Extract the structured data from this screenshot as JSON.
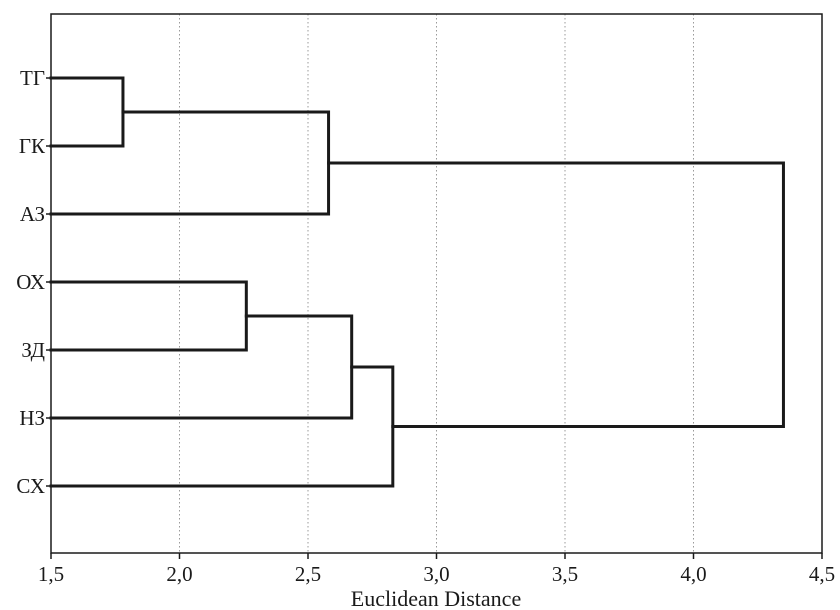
{
  "chart_data": {
    "type": "dendrogram",
    "title": "",
    "xlabel": "Euclidean Distance",
    "ylabel": "",
    "xlim": [
      1.5,
      4.5
    ],
    "xticks": [
      1.5,
      2.0,
      2.5,
      3.0,
      3.5,
      4.0,
      4.5
    ],
    "xtick_labels": [
      "1,5",
      "2,0",
      "2,5",
      "3,0",
      "3,5",
      "4,0",
      "4,5"
    ],
    "grid": "vertical",
    "leaves": [
      "ТГ",
      "ГК",
      "АЗ",
      "ОХ",
      "ЗД",
      "НЗ",
      "СХ"
    ],
    "merges": [
      {
        "id": "c1",
        "children": [
          "ТГ",
          "ГК"
        ],
        "distance": 1.78
      },
      {
        "id": "c2",
        "children": [
          "c1",
          "АЗ"
        ],
        "distance": 2.58
      },
      {
        "id": "c3",
        "children": [
          "ОХ",
          "ЗД"
        ],
        "distance": 2.26
      },
      {
        "id": "c4",
        "children": [
          "c3",
          "НЗ"
        ],
        "distance": 2.67
      },
      {
        "id": "c5",
        "children": [
          "c4",
          "СХ"
        ],
        "distance": 2.83
      },
      {
        "id": "c6",
        "children": [
          "c2",
          "c5"
        ],
        "distance": 4.35
      }
    ]
  }
}
